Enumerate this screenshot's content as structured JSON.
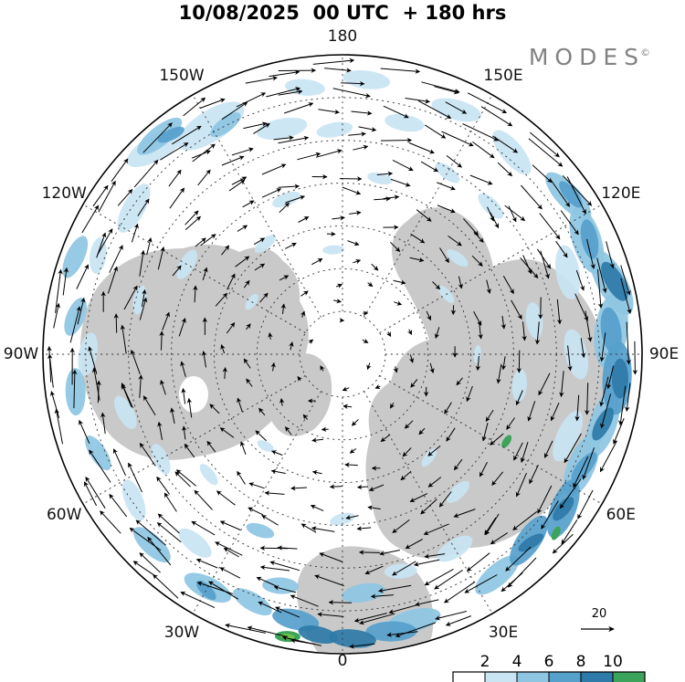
{
  "title": "10/08/2025  00 UTC  + 180 hrs",
  "brand": {
    "name": "MODES",
    "mark": "©"
  },
  "reference_arrow": {
    "label": "20"
  },
  "colorbar": {
    "tick_labels": [
      "2",
      "4",
      "6",
      "8",
      "10"
    ],
    "colors": [
      "#ffffff",
      "#c9e4f3",
      "#8ec6e2",
      "#56a0cc",
      "#2e7aa8",
      "#3ba45a"
    ]
  },
  "chart_data": {
    "type": "map",
    "projection": "north-polar-stereographic",
    "title": "10/08/2025  00 UTC  + 180 hrs",
    "valid": {
      "date": "10/08/2025",
      "cycle": "00 UTC",
      "lead": "+ 180 hrs"
    },
    "layers": [
      "wind-vectors",
      "magnitude-shading",
      "coastlines",
      "graticule"
    ],
    "vector_reference": {
      "value": 20
    },
    "shading_levels": [
      2,
      4,
      6,
      8,
      10
    ],
    "shading_colors": [
      "#ffffff",
      "#c9e4f3",
      "#8ec6e2",
      "#56a0cc",
      "#2e7aa8",
      "#3ba45a"
    ],
    "longitude_labels": [
      {
        "label": "180",
        "a": 0
      },
      {
        "label": "150E",
        "a": 30
      },
      {
        "label": "120E",
        "a": 60
      },
      {
        "label": "90E",
        "a": 90
      },
      {
        "label": "60E",
        "a": 120
      },
      {
        "label": "30E",
        "a": 150
      },
      {
        "label": "0",
        "a": 180
      },
      {
        "label": "30W",
        "a": 210
      },
      {
        "label": "60W",
        "a": 240
      },
      {
        "label": "90W",
        "a": 270
      },
      {
        "label": "120W",
        "a": 300
      },
      {
        "label": "150W",
        "a": 330
      }
    ],
    "graticule": {
      "meridian_step_deg": 30,
      "latitude_circle_count": 6
    }
  }
}
